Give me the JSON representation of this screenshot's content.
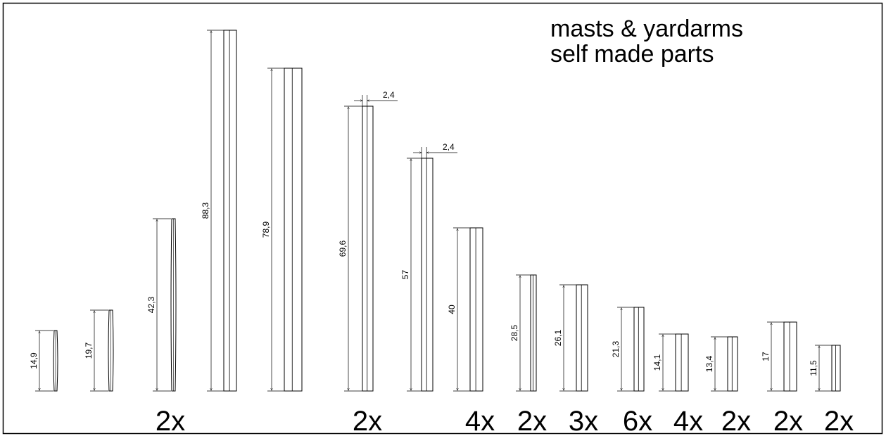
{
  "title": {
    "line1": "masts & yardarms",
    "line2": "self made parts"
  },
  "parts": [
    {
      "length": "14,9",
      "shape": "tapered",
      "quantity": ""
    },
    {
      "length": "19,7",
      "shape": "tapered",
      "quantity": ""
    },
    {
      "length": "42,3",
      "shape": "tapered",
      "quantity": "2x"
    },
    {
      "length": "88,3",
      "shape": "straight",
      "quantity": ""
    },
    {
      "length": "78,9",
      "shape": "straight",
      "quantity": ""
    },
    {
      "length": "69,6",
      "shape": "straight",
      "quantity": "2x",
      "width": "2,4"
    },
    {
      "length": "57",
      "shape": "straight",
      "quantity": "",
      "width": "2,4"
    },
    {
      "length": "40",
      "shape": "straight",
      "quantity": "4x"
    },
    {
      "length": "28,5",
      "shape": "straight",
      "quantity": "2x"
    },
    {
      "length": "26,1",
      "shape": "straight",
      "quantity": "3x"
    },
    {
      "length": "21,3",
      "shape": "straight",
      "quantity": "6x"
    },
    {
      "length": "14,1",
      "shape": "straight",
      "quantity": "4x"
    },
    {
      "length": "13,4",
      "shape": "straight",
      "quantity": "2x"
    },
    {
      "length": "17",
      "shape": "straight",
      "quantity": "2x"
    },
    {
      "length": "11,5",
      "shape": "straight",
      "quantity": "2x"
    }
  ]
}
